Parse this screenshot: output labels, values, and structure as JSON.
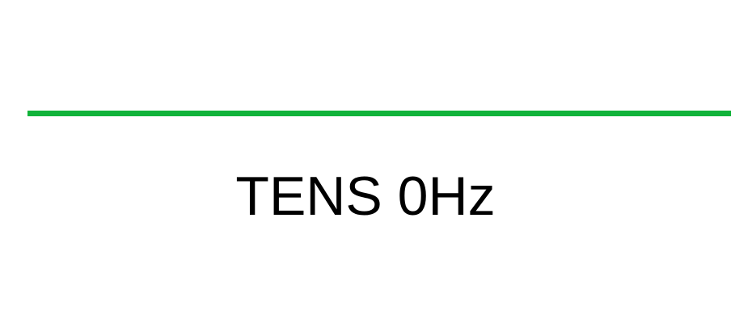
{
  "diagram": {
    "label": "TENS 0Hz",
    "line_color": "#11b33a",
    "text_color": "#000000",
    "background": "#ffffff"
  }
}
